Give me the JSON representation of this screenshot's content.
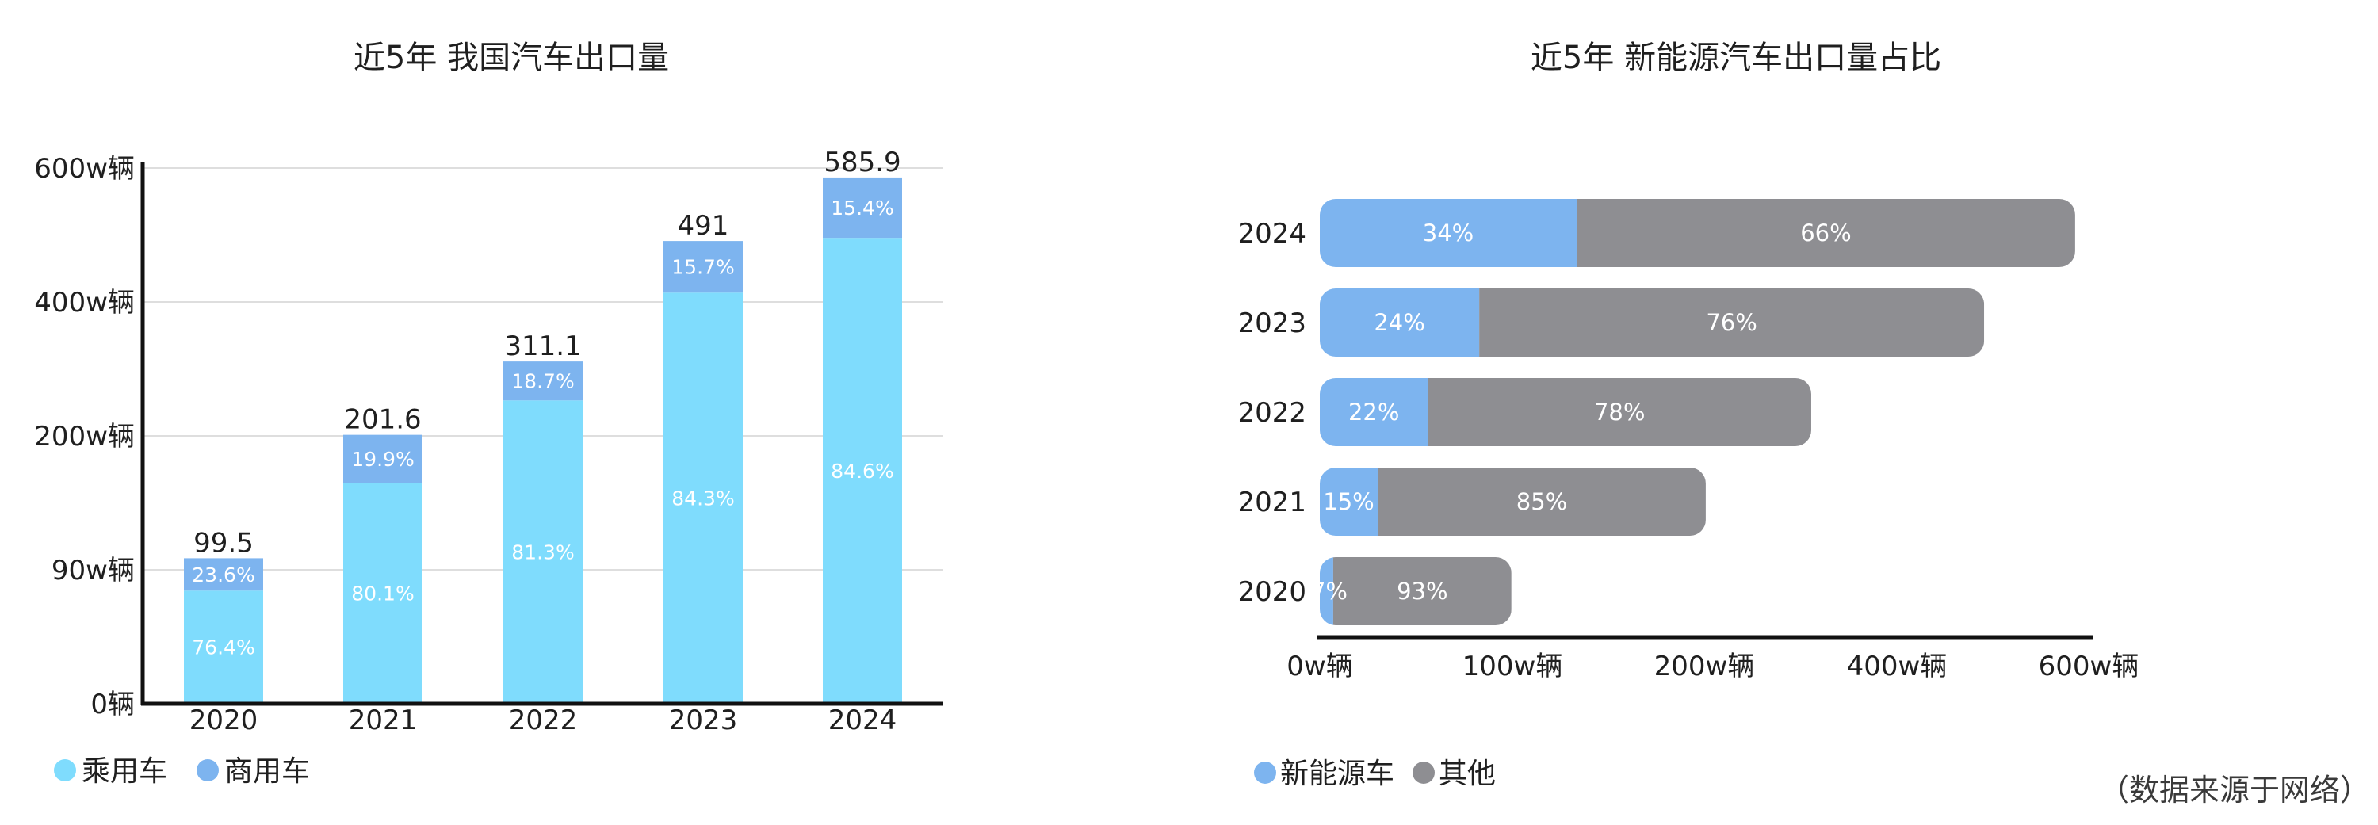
{
  "source_note": "（数据来源于网络）",
  "chart_data": [
    {
      "type": "bar",
      "stacked": true,
      "title": "近5年 我国汽车出口量",
      "categories": [
        "2020",
        "2021",
        "2022",
        "2023",
        "2024"
      ],
      "totals": [
        "99.5",
        "201.6",
        "311.1",
        "491",
        "585.9"
      ],
      "total_values": [
        99.5,
        201.6,
        311.1,
        491,
        585.9
      ],
      "series": [
        {
          "name": "乘用车",
          "color": "#7fdcfd",
          "share_labels": [
            "76.4%",
            "80.1%",
            "81.3%",
            "84.3%",
            "84.6%"
          ]
        },
        {
          "name": "商用车",
          "color": "#7db4ef",
          "share_labels": [
            "23.6%",
            "19.9%",
            "18.7%",
            "15.7%",
            "15.4%"
          ]
        }
      ],
      "y_ticks": [
        {
          "label": "0辆",
          "value": 0
        },
        {
          "label": "90w辆",
          "value": 90
        },
        {
          "label": "200w辆",
          "value": 200
        },
        {
          "label": "400w辆",
          "value": 400
        },
        {
          "label": "600w辆",
          "value": 600
        }
      ],
      "grid": true,
      "legend_position": "bottom-left"
    },
    {
      "type": "bar",
      "orientation": "horizontal",
      "stacked": true,
      "title": "近5年 新能源汽车出口量占比",
      "categories": [
        "2024",
        "2023",
        "2022",
        "2021",
        "2020"
      ],
      "total_values": [
        585.9,
        491,
        311.1,
        201.6,
        99.5
      ],
      "series": [
        {
          "name": "新能源车",
          "color": "#7db4ef",
          "share_labels": [
            "34%",
            "24%",
            "22%",
            "15%",
            "7%"
          ],
          "shares": [
            0.34,
            0.24,
            0.22,
            0.15,
            0.07
          ]
        },
        {
          "name": "其他",
          "color": "#8e8e92",
          "share_labels": [
            "66%",
            "76%",
            "78%",
            "85%",
            "93%"
          ],
          "shares": [
            0.66,
            0.76,
            0.78,
            0.85,
            0.93
          ]
        }
      ],
      "x_ticks": [
        {
          "label": "0w辆",
          "value": 0
        },
        {
          "label": "100w辆",
          "value": 100
        },
        {
          "label": "200w辆",
          "value": 200
        },
        {
          "label": "400w辆",
          "value": 400
        },
        {
          "label": "600w辆",
          "value": 600
        }
      ],
      "grid": false,
      "legend_position": "bottom-left"
    }
  ]
}
